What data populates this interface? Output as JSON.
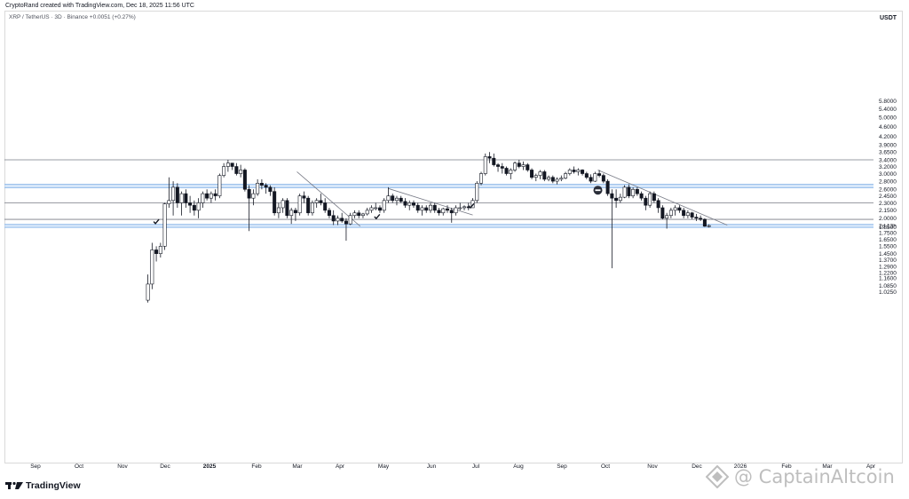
{
  "header": {
    "text": "CryptoRand created with TradingView.com, Dec 18, 2025 11:56 UTC"
  },
  "legend": {
    "text": "XRP / TetherUS · 3D · Binance  +0.0051 (+0.27%)"
  },
  "currency": "USDT",
  "branding": {
    "logo_text": "TradingView",
    "watermark": "@ CaptainAltcoin"
  },
  "colors": {
    "up_body": "#ffffff",
    "down_body": "#131722",
    "wick": "#131722",
    "zone": "#bbd7f5",
    "zone_line": "#8fbaea",
    "level_line": "#787b86",
    "trendline": "#787b86"
  },
  "chart_data": {
    "type": "candlestick",
    "scale": "log",
    "ylim": [
      0.94,
      6.4
    ],
    "y_ticks": [
      "5.8000",
      "5.4000",
      "5.0000",
      "4.6000",
      "4.2000",
      "3.9000",
      "3.6500",
      "3.4000",
      "3.2000",
      "3.0000",
      "2.8000",
      "2.6000",
      "2.4500",
      "2.3000",
      "2.1500",
      "2.0000",
      "1.8500",
      "1.7500",
      "1.6500",
      "1.5500",
      "1.4500",
      "1.3700",
      "1.2900",
      "1.2200",
      "1.1600",
      "1.0850",
      "1.0250"
    ],
    "x_ticks": [
      "Sep",
      "Oct",
      "Nov",
      "Dec",
      "2025",
      "Feb",
      "Mar",
      "Apr",
      "May",
      "Jun",
      "Jul",
      "Aug",
      "Sep",
      "Oct",
      "Nov",
      "Dec",
      "2026",
      "Feb",
      "Mar",
      "Apr"
    ],
    "x_tick_bold": "2025",
    "price_label": "2d 13h",
    "price_label_value": 1.87,
    "horizontal_levels": [
      3.4,
      2.3,
      1.98
    ],
    "zones": [
      [
        2.64,
        2.72
      ],
      [
        1.84,
        1.89
      ]
    ],
    "trendlines": [
      {
        "from": [
          "2025-03-01",
          3.05
        ],
        "to": [
          "2025-04-15",
          1.86
        ]
      },
      {
        "from": [
          "2025-05-05",
          2.62
        ],
        "to": [
          "2025-07-04",
          2.06
        ]
      },
      {
        "from": [
          "2025-10-01",
          3.1
        ],
        "to": [
          "2026-01-01",
          1.88
        ]
      }
    ],
    "markers": [
      {
        "type": "check",
        "date": "2024-11-21",
        "value": 1.94
      },
      {
        "type": "check",
        "date": "2025-04-27",
        "value": 2.03
      },
      {
        "type": "check",
        "date": "2025-07-03",
        "value": 2.24
      },
      {
        "type": "no-entry",
        "date": "2025-10-01",
        "value": 2.58
      }
    ],
    "candles": [
      {
        "d": "2024-11-15",
        "o": 0.95,
        "h": 1.2,
        "l": 0.93,
        "c": 1.1
      },
      {
        "d": "2024-11-18",
        "o": 1.1,
        "h": 1.6,
        "l": 1.05,
        "c": 1.5
      },
      {
        "d": "2024-11-21",
        "o": 1.5,
        "h": 1.55,
        "l": 1.35,
        "c": 1.45
      },
      {
        "d": "2024-11-24",
        "o": 1.45,
        "h": 1.6,
        "l": 1.4,
        "c": 1.55
      },
      {
        "d": "2024-11-27",
        "o": 1.55,
        "h": 2.3,
        "l": 1.5,
        "c": 2.28
      },
      {
        "d": "2024-11-30",
        "o": 2.28,
        "h": 2.9,
        "l": 2.2,
        "c": 2.35
      },
      {
        "d": "2024-12-03",
        "o": 2.35,
        "h": 2.8,
        "l": 2.05,
        "c": 2.65
      },
      {
        "d": "2024-12-06",
        "o": 2.65,
        "h": 2.75,
        "l": 2.2,
        "c": 2.3
      },
      {
        "d": "2024-12-09",
        "o": 2.3,
        "h": 2.55,
        "l": 2.05,
        "c": 2.5
      },
      {
        "d": "2024-12-12",
        "o": 2.5,
        "h": 2.6,
        "l": 2.2,
        "c": 2.3
      },
      {
        "d": "2024-12-15",
        "o": 2.3,
        "h": 2.45,
        "l": 2.1,
        "c": 2.25
      },
      {
        "d": "2024-12-18",
        "o": 2.25,
        "h": 2.35,
        "l": 2.05,
        "c": 2.15
      },
      {
        "d": "2024-12-21",
        "o": 2.15,
        "h": 2.4,
        "l": 2.0,
        "c": 2.3
      },
      {
        "d": "2024-12-24",
        "o": 2.3,
        "h": 2.55,
        "l": 2.2,
        "c": 2.5
      },
      {
        "d": "2024-12-27",
        "o": 2.5,
        "h": 2.6,
        "l": 2.35,
        "c": 2.4
      },
      {
        "d": "2024-12-30",
        "o": 2.4,
        "h": 2.55,
        "l": 2.3,
        "c": 2.5
      },
      {
        "d": "2025-01-02",
        "o": 2.5,
        "h": 2.6,
        "l": 2.35,
        "c": 2.45
      },
      {
        "d": "2025-01-05",
        "o": 2.45,
        "h": 3.0,
        "l": 2.4,
        "c": 2.95
      },
      {
        "d": "2025-01-08",
        "o": 2.95,
        "h": 3.3,
        "l": 2.9,
        "c": 3.2
      },
      {
        "d": "2025-01-11",
        "o": 3.2,
        "h": 3.4,
        "l": 3.05,
        "c": 3.3
      },
      {
        "d": "2025-01-14",
        "o": 3.3,
        "h": 3.3,
        "l": 3.1,
        "c": 3.2
      },
      {
        "d": "2025-01-17",
        "o": 3.2,
        "h": 3.3,
        "l": 2.95,
        "c": 3.0
      },
      {
        "d": "2025-01-20",
        "o": 3.0,
        "h": 3.25,
        "l": 2.9,
        "c": 3.1
      },
      {
        "d": "2025-01-23",
        "o": 3.1,
        "h": 3.15,
        "l": 2.55,
        "c": 2.6
      },
      {
        "d": "2025-01-26",
        "o": 2.6,
        "h": 2.7,
        "l": 1.78,
        "c": 2.4
      },
      {
        "d": "2025-01-29",
        "o": 2.4,
        "h": 2.6,
        "l": 2.25,
        "c": 2.5
      },
      {
        "d": "2025-02-01",
        "o": 2.5,
        "h": 2.85,
        "l": 2.45,
        "c": 2.75
      },
      {
        "d": "2025-02-04",
        "o": 2.75,
        "h": 2.85,
        "l": 2.6,
        "c": 2.7
      },
      {
        "d": "2025-02-07",
        "o": 2.7,
        "h": 2.75,
        "l": 2.5,
        "c": 2.65
      },
      {
        "d": "2025-02-10",
        "o": 2.65,
        "h": 2.7,
        "l": 2.45,
        "c": 2.55
      },
      {
        "d": "2025-02-13",
        "o": 2.55,
        "h": 2.65,
        "l": 2.05,
        "c": 2.1
      },
      {
        "d": "2025-02-16",
        "o": 2.1,
        "h": 2.3,
        "l": 2.0,
        "c": 2.2
      },
      {
        "d": "2025-02-19",
        "o": 2.2,
        "h": 2.4,
        "l": 2.1,
        "c": 2.35
      },
      {
        "d": "2025-02-22",
        "o": 2.35,
        "h": 2.4,
        "l": 2.0,
        "c": 2.05
      },
      {
        "d": "2025-02-25",
        "o": 2.05,
        "h": 2.2,
        "l": 1.9,
        "c": 2.15
      },
      {
        "d": "2025-02-28",
        "o": 2.15,
        "h": 2.2,
        "l": 1.95,
        "c": 2.1
      },
      {
        "d": "2025-03-03",
        "o": 2.1,
        "h": 2.5,
        "l": 2.05,
        "c": 2.45
      },
      {
        "d": "2025-03-06",
        "o": 2.45,
        "h": 2.55,
        "l": 2.3,
        "c": 2.4
      },
      {
        "d": "2025-03-09",
        "o": 2.4,
        "h": 2.45,
        "l": 2.05,
        "c": 2.1
      },
      {
        "d": "2025-03-12",
        "o": 2.1,
        "h": 2.35,
        "l": 2.05,
        "c": 2.3
      },
      {
        "d": "2025-03-15",
        "o": 2.3,
        "h": 2.4,
        "l": 2.2,
        "c": 2.35
      },
      {
        "d": "2025-03-18",
        "o": 2.35,
        "h": 2.5,
        "l": 2.25,
        "c": 2.3
      },
      {
        "d": "2025-03-21",
        "o": 2.3,
        "h": 2.4,
        "l": 2.1,
        "c": 2.15
      },
      {
        "d": "2025-03-24",
        "o": 2.15,
        "h": 2.2,
        "l": 2.0,
        "c": 2.05
      },
      {
        "d": "2025-03-27",
        "o": 2.05,
        "h": 2.15,
        "l": 1.88,
        "c": 1.95
      },
      {
        "d": "2025-03-30",
        "o": 1.95,
        "h": 2.05,
        "l": 1.88,
        "c": 2.0
      },
      {
        "d": "2025-04-02",
        "o": 2.0,
        "h": 2.1,
        "l": 1.92,
        "c": 1.95
      },
      {
        "d": "2025-04-05",
        "o": 1.95,
        "h": 2.0,
        "l": 1.63,
        "c": 1.9
      },
      {
        "d": "2025-04-08",
        "o": 1.9,
        "h": 2.1,
        "l": 1.88,
        "c": 2.05
      },
      {
        "d": "2025-04-11",
        "o": 2.05,
        "h": 2.15,
        "l": 2.0,
        "c": 2.1
      },
      {
        "d": "2025-04-14",
        "o": 2.1,
        "h": 2.15,
        "l": 2.0,
        "c": 2.05
      },
      {
        "d": "2025-04-17",
        "o": 2.05,
        "h": 2.1,
        "l": 2.0,
        "c": 2.08
      },
      {
        "d": "2025-04-20",
        "o": 2.08,
        "h": 2.2,
        "l": 2.05,
        "c": 2.15
      },
      {
        "d": "2025-04-23",
        "o": 2.15,
        "h": 2.25,
        "l": 2.1,
        "c": 2.2
      },
      {
        "d": "2025-04-26",
        "o": 2.2,
        "h": 2.3,
        "l": 2.15,
        "c": 2.2
      },
      {
        "d": "2025-04-29",
        "o": 2.2,
        "h": 2.25,
        "l": 2.1,
        "c": 2.15
      },
      {
        "d": "2025-05-02",
        "o": 2.15,
        "h": 2.4,
        "l": 2.1,
        "c": 2.35
      },
      {
        "d": "2025-05-05",
        "o": 2.35,
        "h": 2.65,
        "l": 2.3,
        "c": 2.45
      },
      {
        "d": "2025-05-08",
        "o": 2.45,
        "h": 2.5,
        "l": 2.3,
        "c": 2.35
      },
      {
        "d": "2025-05-11",
        "o": 2.35,
        "h": 2.45,
        "l": 2.25,
        "c": 2.4
      },
      {
        "d": "2025-05-14",
        "o": 2.4,
        "h": 2.45,
        "l": 2.3,
        "c": 2.33
      },
      {
        "d": "2025-05-17",
        "o": 2.33,
        "h": 2.4,
        "l": 2.2,
        "c": 2.25
      },
      {
        "d": "2025-05-20",
        "o": 2.25,
        "h": 2.35,
        "l": 2.15,
        "c": 2.3
      },
      {
        "d": "2025-05-23",
        "o": 2.3,
        "h": 2.35,
        "l": 2.2,
        "c": 2.25
      },
      {
        "d": "2025-05-26",
        "o": 2.25,
        "h": 2.3,
        "l": 2.1,
        "c": 2.15
      },
      {
        "d": "2025-05-29",
        "o": 2.15,
        "h": 2.25,
        "l": 2.05,
        "c": 2.2
      },
      {
        "d": "2025-06-01",
        "o": 2.2,
        "h": 2.25,
        "l": 2.1,
        "c": 2.15
      },
      {
        "d": "2025-06-04",
        "o": 2.15,
        "h": 2.3,
        "l": 2.1,
        "c": 2.25
      },
      {
        "d": "2025-06-07",
        "o": 2.25,
        "h": 2.3,
        "l": 2.1,
        "c": 2.15
      },
      {
        "d": "2025-06-10",
        "o": 2.15,
        "h": 2.2,
        "l": 2.05,
        "c": 2.1
      },
      {
        "d": "2025-06-13",
        "o": 2.1,
        "h": 2.2,
        "l": 2.05,
        "c": 2.18
      },
      {
        "d": "2025-06-16",
        "o": 2.18,
        "h": 2.25,
        "l": 2.1,
        "c": 2.15
      },
      {
        "d": "2025-06-19",
        "o": 2.15,
        "h": 2.2,
        "l": 1.92,
        "c": 2.1
      },
      {
        "d": "2025-06-22",
        "o": 2.1,
        "h": 2.25,
        "l": 2.05,
        "c": 2.2
      },
      {
        "d": "2025-06-25",
        "o": 2.2,
        "h": 2.3,
        "l": 2.15,
        "c": 2.2
      },
      {
        "d": "2025-06-28",
        "o": 2.2,
        "h": 2.25,
        "l": 2.15,
        "c": 2.22
      },
      {
        "d": "2025-07-01",
        "o": 2.22,
        "h": 2.3,
        "l": 2.15,
        "c": 2.2
      },
      {
        "d": "2025-07-04",
        "o": 2.2,
        "h": 2.4,
        "l": 2.2,
        "c": 2.35
      },
      {
        "d": "2025-07-07",
        "o": 2.35,
        "h": 2.8,
        "l": 2.3,
        "c": 2.75
      },
      {
        "d": "2025-07-10",
        "o": 2.75,
        "h": 3.05,
        "l": 2.7,
        "c": 3.0
      },
      {
        "d": "2025-07-13",
        "o": 3.0,
        "h": 3.6,
        "l": 2.95,
        "c": 3.5
      },
      {
        "d": "2025-07-16",
        "o": 3.5,
        "h": 3.65,
        "l": 3.3,
        "c": 3.45
      },
      {
        "d": "2025-07-19",
        "o": 3.45,
        "h": 3.6,
        "l": 3.2,
        "c": 3.25
      },
      {
        "d": "2025-07-22",
        "o": 3.25,
        "h": 3.3,
        "l": 3.05,
        "c": 3.2
      },
      {
        "d": "2025-07-25",
        "o": 3.2,
        "h": 3.3,
        "l": 3.0,
        "c": 3.15
      },
      {
        "d": "2025-07-28",
        "o": 3.15,
        "h": 3.2,
        "l": 2.95,
        "c": 3.0
      },
      {
        "d": "2025-07-31",
        "o": 3.0,
        "h": 3.15,
        "l": 2.85,
        "c": 3.1
      },
      {
        "d": "2025-08-03",
        "o": 3.1,
        "h": 3.35,
        "l": 3.05,
        "c": 3.3
      },
      {
        "d": "2025-08-06",
        "o": 3.3,
        "h": 3.4,
        "l": 3.15,
        "c": 3.2
      },
      {
        "d": "2025-08-09",
        "o": 3.2,
        "h": 3.35,
        "l": 3.1,
        "c": 3.25
      },
      {
        "d": "2025-08-12",
        "o": 3.25,
        "h": 3.3,
        "l": 3.05,
        "c": 3.1
      },
      {
        "d": "2025-08-15",
        "o": 3.1,
        "h": 3.15,
        "l": 2.85,
        "c": 2.9
      },
      {
        "d": "2025-08-18",
        "o": 2.9,
        "h": 3.0,
        "l": 2.8,
        "c": 2.95
      },
      {
        "d": "2025-08-21",
        "o": 2.95,
        "h": 3.1,
        "l": 2.85,
        "c": 3.05
      },
      {
        "d": "2025-08-24",
        "o": 3.05,
        "h": 3.1,
        "l": 2.8,
        "c": 2.85
      },
      {
        "d": "2025-08-27",
        "o": 2.85,
        "h": 2.95,
        "l": 2.8,
        "c": 2.9
      },
      {
        "d": "2025-08-30",
        "o": 2.9,
        "h": 2.95,
        "l": 2.75,
        "c": 2.8
      },
      {
        "d": "2025-09-02",
        "o": 2.8,
        "h": 2.9,
        "l": 2.72,
        "c": 2.85
      },
      {
        "d": "2025-09-05",
        "o": 2.85,
        "h": 2.95,
        "l": 2.8,
        "c": 2.88
      },
      {
        "d": "2025-09-08",
        "o": 2.88,
        "h": 3.05,
        "l": 2.85,
        "c": 3.0
      },
      {
        "d": "2025-09-11",
        "o": 3.0,
        "h": 3.15,
        "l": 2.95,
        "c": 3.1
      },
      {
        "d": "2025-09-14",
        "o": 3.1,
        "h": 3.2,
        "l": 3.0,
        "c": 3.05
      },
      {
        "d": "2025-09-17",
        "o": 3.05,
        "h": 3.15,
        "l": 2.95,
        "c": 3.1
      },
      {
        "d": "2025-09-20",
        "o": 3.1,
        "h": 3.12,
        "l": 2.95,
        "c": 3.0
      },
      {
        "d": "2025-09-23",
        "o": 3.0,
        "h": 3.05,
        "l": 2.85,
        "c": 2.9
      },
      {
        "d": "2025-09-26",
        "o": 2.9,
        "h": 2.98,
        "l": 2.75,
        "c": 2.8
      },
      {
        "d": "2025-09-29",
        "o": 2.8,
        "h": 3.05,
        "l": 2.78,
        "c": 3.0
      },
      {
        "d": "2025-10-02",
        "o": 3.0,
        "h": 3.1,
        "l": 2.9,
        "c": 2.95
      },
      {
        "d": "2025-10-05",
        "o": 2.95,
        "h": 3.0,
        "l": 2.75,
        "c": 2.8
      },
      {
        "d": "2025-10-08",
        "o": 2.8,
        "h": 2.85,
        "l": 2.45,
        "c": 2.5
      },
      {
        "d": "2025-10-11",
        "o": 2.5,
        "h": 2.6,
        "l": 1.27,
        "c": 2.4
      },
      {
        "d": "2025-10-14",
        "o": 2.4,
        "h": 2.6,
        "l": 2.2,
        "c": 2.35
      },
      {
        "d": "2025-10-17",
        "o": 2.35,
        "h": 2.5,
        "l": 2.3,
        "c": 2.42
      },
      {
        "d": "2025-10-20",
        "o": 2.42,
        "h": 2.7,
        "l": 2.4,
        "c": 2.65
      },
      {
        "d": "2025-10-23",
        "o": 2.65,
        "h": 2.72,
        "l": 2.4,
        "c": 2.45
      },
      {
        "d": "2025-10-26",
        "o": 2.45,
        "h": 2.65,
        "l": 2.4,
        "c": 2.6
      },
      {
        "d": "2025-10-29",
        "o": 2.6,
        "h": 2.65,
        "l": 2.45,
        "c": 2.5
      },
      {
        "d": "2025-11-01",
        "o": 2.5,
        "h": 2.55,
        "l": 2.35,
        "c": 2.4
      },
      {
        "d": "2025-11-04",
        "o": 2.4,
        "h": 2.45,
        "l": 2.15,
        "c": 2.25
      },
      {
        "d": "2025-11-07",
        "o": 2.25,
        "h": 2.55,
        "l": 2.2,
        "c": 2.5
      },
      {
        "d": "2025-11-10",
        "o": 2.5,
        "h": 2.55,
        "l": 2.3,
        "c": 2.35
      },
      {
        "d": "2025-11-13",
        "o": 2.35,
        "h": 2.4,
        "l": 2.1,
        "c": 2.2
      },
      {
        "d": "2025-11-16",
        "o": 2.2,
        "h": 2.25,
        "l": 1.98,
        "c": 2.0
      },
      {
        "d": "2025-11-19",
        "o": 2.0,
        "h": 2.1,
        "l": 1.82,
        "c": 2.05
      },
      {
        "d": "2025-11-22",
        "o": 2.05,
        "h": 2.2,
        "l": 2.0,
        "c": 2.15
      },
      {
        "d": "2025-11-25",
        "o": 2.15,
        "h": 2.25,
        "l": 2.05,
        "c": 2.2
      },
      {
        "d": "2025-11-28",
        "o": 2.2,
        "h": 2.25,
        "l": 2.1,
        "c": 2.15
      },
      {
        "d": "2025-12-01",
        "o": 2.15,
        "h": 2.2,
        "l": 2.0,
        "c": 2.05
      },
      {
        "d": "2025-12-04",
        "o": 2.05,
        "h": 2.15,
        "l": 2.0,
        "c": 2.1
      },
      {
        "d": "2025-12-07",
        "o": 2.1,
        "h": 2.12,
        "l": 1.98,
        "c": 2.02
      },
      {
        "d": "2025-12-10",
        "o": 2.02,
        "h": 2.08,
        "l": 1.95,
        "c": 2.0
      },
      {
        "d": "2025-12-13",
        "o": 2.0,
        "h": 2.05,
        "l": 1.95,
        "c": 1.98
      },
      {
        "d": "2025-12-16",
        "o": 1.98,
        "h": 2.0,
        "l": 1.85,
        "c": 1.86
      },
      {
        "d": "2025-12-19",
        "o": 1.86,
        "h": 1.89,
        "l": 1.84,
        "c": 1.87
      }
    ]
  }
}
